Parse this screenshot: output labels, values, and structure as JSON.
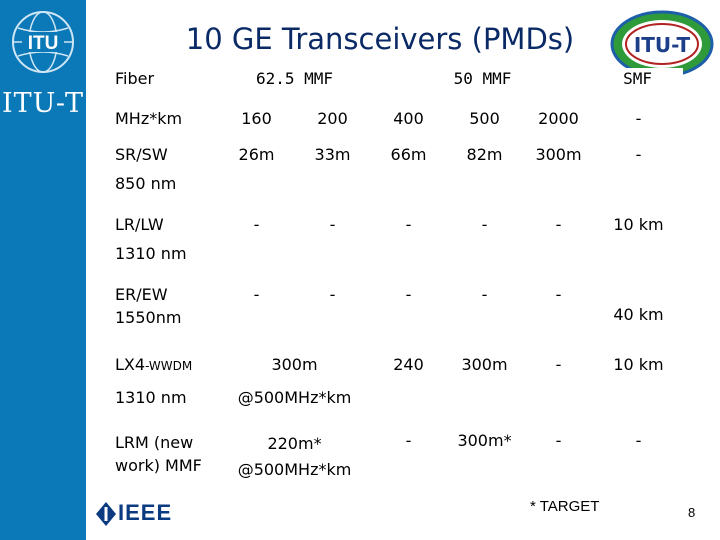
{
  "sidebar": {
    "org": "ITU-T",
    "logo_text": "ITU"
  },
  "slide": {
    "title": "10 GE Transceivers (PMDs)",
    "page_number": "8",
    "footnote": "* TARGET"
  },
  "stamp_text": "ITU-T",
  "ieee_text": "IEEE",
  "table": {
    "header": {
      "fiber": "Fiber",
      "mmf625": "62.5 MMF",
      "mmf50": "50 MMF",
      "smf": "SMF"
    },
    "mhz": {
      "label": "MHz*km",
      "v1": "160",
      "v2": "200",
      "v3": "400",
      "v4": "500",
      "v5": "2000",
      "v6": "-"
    },
    "srsw": {
      "label": "SR/SW",
      "sub": "850 nm",
      "v1": "26m",
      "v2": "33m",
      "v3": "66m",
      "v4": "82m",
      "v5": "300m",
      "v6": "-"
    },
    "lrlw": {
      "label": "LR/LW",
      "sub": "1310 nm",
      "v1": "-",
      "v2": "-",
      "v3": "-",
      "v4": "-",
      "v5": "-",
      "v6": "10 km"
    },
    "erew": {
      "label": "ER/EW",
      "sub": "1550nm",
      "v1": "-",
      "v2": "-",
      "v3": "-",
      "v4": "-",
      "v5": "-",
      "v6": "40 km"
    },
    "lx4": {
      "label": "LX4",
      "label_suffix": "-WWDM",
      "sub": "1310 nm",
      "mmf625_value": "300m",
      "mmf625_note": "@500MHz*km",
      "v3": "240",
      "v4": "300m",
      "v5": "-",
      "v6": "10 km"
    },
    "lrm": {
      "label": "LRM (new work) MMF",
      "mmf625_value": "220m*",
      "mmf625_note": "@500MHz*km",
      "v3": "-",
      "v4": "300m*",
      "v5": "-",
      "v6": "-"
    }
  },
  "colors": {
    "sidebar": "#0b78b8",
    "title": "#0a2a66",
    "ieee": "#0a3a80"
  }
}
